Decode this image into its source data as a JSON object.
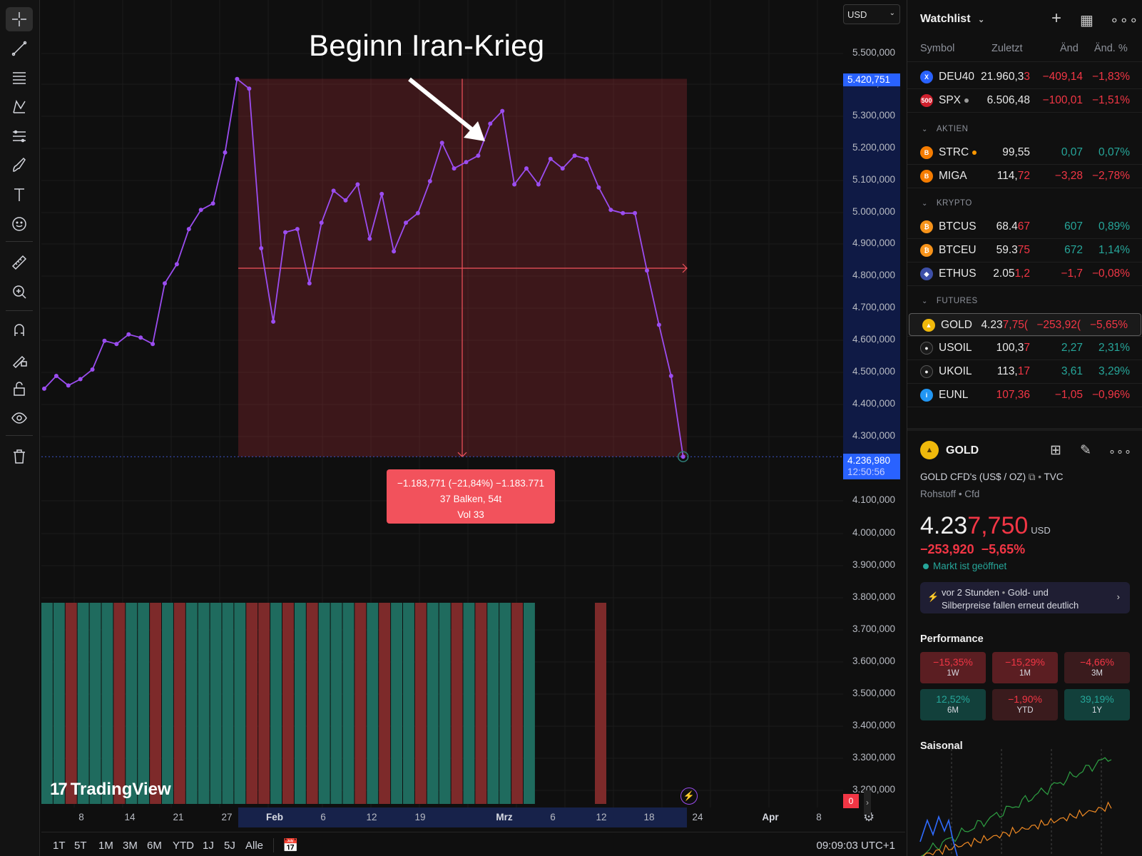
{
  "chart": {
    "annotation_title": "Beginn Iran-Krieg",
    "currency": "USD",
    "price_ticks": [
      "5.500,000",
      "5.400,000",
      "5.300,000",
      "5.200,000",
      "5.100,000",
      "5.000,000",
      "4.900,000",
      "4.800,000",
      "4.700,000",
      "4.600,000",
      "4.500,000",
      "4.400,000",
      "4.300,000",
      "4.100,000",
      "4.000,000",
      "3.900,000",
      "3.800,000",
      "3.700,000",
      "3.600,000",
      "3.500,000",
      "3.400,000",
      "3.300,000",
      "3.200,000"
    ],
    "top_price_tag": "5.420,751",
    "current_price_tag": "4.236,980",
    "countdown": "12:50:56",
    "measure": {
      "line1": "−1.183,771 (−21,84%) −1.183.771",
      "line2": "37 Balken, 54t",
      "line3": "Vol 33"
    },
    "volume_zero": "0",
    "logo_text": "TradingView",
    "time_labels": [
      {
        "text": "8",
        "bold": false
      },
      {
        "text": "14",
        "bold": false
      },
      {
        "text": "21",
        "bold": false
      },
      {
        "text": "27",
        "bold": false
      },
      {
        "text": "Feb",
        "bold": true
      },
      {
        "text": "6",
        "bold": false
      },
      {
        "text": "12",
        "bold": false
      },
      {
        "text": "19",
        "bold": false
      },
      {
        "text": "Mrz",
        "bold": true
      },
      {
        "text": "6",
        "bold": false
      },
      {
        "text": "12",
        "bold": false
      },
      {
        "text": "18",
        "bold": false
      },
      {
        "text": "24",
        "bold": false
      },
      {
        "text": "Apr",
        "bold": true
      },
      {
        "text": "8",
        "bold": false
      }
    ],
    "ranges": [
      "1T",
      "5T",
      "1M",
      "3M",
      "6M",
      "YTD",
      "1J",
      "5J",
      "Alle"
    ],
    "clock": "09:09:03 UTC+1",
    "line_color": "#9b4df0",
    "price_series": [
      4450,
      4490,
      4460,
      4480,
      4510,
      4600,
      4590,
      4620,
      4610,
      4590,
      4780,
      4840,
      4950,
      5010,
      5030,
      5190,
      5420,
      5390,
      4890,
      4660,
      4940,
      4950,
      4780,
      4970,
      5070,
      5040,
      5090,
      4920,
      5060,
      4880,
      4970,
      5000,
      5100,
      5220,
      5140,
      5160,
      5180,
      5280,
      5320,
      5090,
      5140,
      5090,
      5170,
      5140,
      5180,
      5170,
      5080,
      5010,
      5000,
      5000,
      4820,
      4650,
      4490,
      4236.98
    ],
    "volume_colors": [
      "g",
      "g",
      "r",
      "g",
      "g",
      "g",
      "r",
      "g",
      "g",
      "r",
      "g",
      "r",
      "g",
      "g",
      "g",
      "g",
      "g",
      "r",
      "r",
      "g",
      "r",
      "g",
      "r",
      "g",
      "g",
      "g",
      "r",
      "g",
      "r",
      "g",
      "g",
      "r",
      "g",
      "g",
      "r",
      "g",
      "r",
      "g",
      "g",
      "r",
      "g"
    ]
  },
  "watchlist": {
    "title": "Watchlist",
    "columns": {
      "symbol": "Symbol",
      "last": "Zuletzt",
      "chg": "Änd",
      "pct": "Änd. %"
    },
    "top_rows": [
      {
        "icon": "X",
        "icon_color": "#2962ff",
        "symbol": "DEU40",
        "last": "21.960,3",
        "last_hl": "3",
        "chg": "−409,14",
        "pct": "−1,83%",
        "dir": "neg",
        "dot": ""
      },
      {
        "icon": "500",
        "icon_color": "#d0202d",
        "symbol": "SPX",
        "last": "6.506,48",
        "last_hl": "",
        "chg": "−100,01",
        "pct": "−1,51%",
        "dir": "neg",
        "dot": "#9a9a9a"
      }
    ],
    "sections": [
      {
        "label": "AKTIEN",
        "rows": [
          {
            "icon": "B",
            "icon_color": "#f57c00",
            "symbol": "STRC",
            "last": "99,55",
            "last_hl": "",
            "chg": "0,07",
            "pct": "0,07%",
            "dir": "pos",
            "dot": "#ff9800"
          },
          {
            "icon": "B",
            "icon_color": "#f57c00",
            "symbol": "MIGA",
            "last": "114,",
            "last_hl": "72",
            "chg": "−3,28",
            "pct": "−2,78%",
            "dir": "neg",
            "dot": ""
          }
        ]
      },
      {
        "label": "KRYPTO",
        "rows": [
          {
            "icon": "₿",
            "icon_color": "#f7931a",
            "symbol": "BTCUS",
            "last": "68.4",
            "last_hl": "67",
            "chg": "607",
            "pct": "0,89%",
            "dir": "pos",
            "dot": ""
          },
          {
            "icon": "₿",
            "icon_color": "#f7931a",
            "symbol": "BTCEU",
            "last": "59.3",
            "last_hl": "75",
            "chg": "672",
            "pct": "1,14%",
            "dir": "pos",
            "dot": ""
          },
          {
            "icon": "◆",
            "icon_color": "#3d4fa8",
            "symbol": "ETHUS",
            "last": "2.05",
            "last_hl": "1,2",
            "chg": "−1,7",
            "pct": "−0,08%",
            "dir": "neg",
            "dot": ""
          }
        ]
      },
      {
        "label": "FUTURES",
        "rows": [
          {
            "icon": "▲",
            "icon_color": "#f0b90b",
            "symbol": "GOLD",
            "last": "4.23",
            "last_hl": "7,75(",
            "chg": "−253,92(",
            "pct": "−5,65%",
            "dir": "neg",
            "dot": "",
            "selected": true
          },
          {
            "icon": "●",
            "icon_color": "#1a1a1a",
            "symbol": "USOIL",
            "last": "100,3",
            "last_hl": "7",
            "chg": "2,27",
            "pct": "2,31%",
            "dir": "pos",
            "dot": ""
          },
          {
            "icon": "●",
            "icon_color": "#1a1a1a",
            "symbol": "UKOIL",
            "last": "113,",
            "last_hl": "17",
            "chg": "3,61",
            "pct": "3,29%",
            "dir": "pos",
            "dot": ""
          },
          {
            "icon": "i",
            "icon_color": "#2196f3",
            "symbol": "EUNL",
            "last": "107,36",
            "last_hl": "",
            "chg": "−1,05",
            "pct": "−0,96%",
            "dir": "neg",
            "dot": "",
            "last_neg": true
          }
        ]
      }
    ]
  },
  "detail": {
    "symbol": "GOLD",
    "description": "GOLD CFD's (US$ / OZ)",
    "source": "TVC",
    "category": "Rohstoff",
    "type": "Cfd",
    "price_main": "4.23",
    "price_hl": "7,750",
    "price_currency": "USD",
    "change": "−253,920",
    "change_pct": "−5,65%",
    "status": "Markt ist geöffnet",
    "news_time": "vor 2 Stunden",
    "news_line1": "Gold- und",
    "news_line2": "Silberpreise fallen erneut deutlich",
    "performance_title": "Performance",
    "performance": [
      {
        "value": "−15,35%",
        "label": "1W",
        "dir": "neg"
      },
      {
        "value": "−15,29%",
        "label": "1M",
        "dir": "neg"
      },
      {
        "value": "−4,66%",
        "label": "3M",
        "dir": "neg-weak"
      },
      {
        "value": "12,52%",
        "label": "6M",
        "dir": "pos"
      },
      {
        "value": "−1,90%",
        "label": "YTD",
        "dir": "neg-weak"
      },
      {
        "value": "39,19%",
        "label": "1Y",
        "dir": "pos"
      }
    ],
    "seasonal_title": "Saisonal"
  }
}
